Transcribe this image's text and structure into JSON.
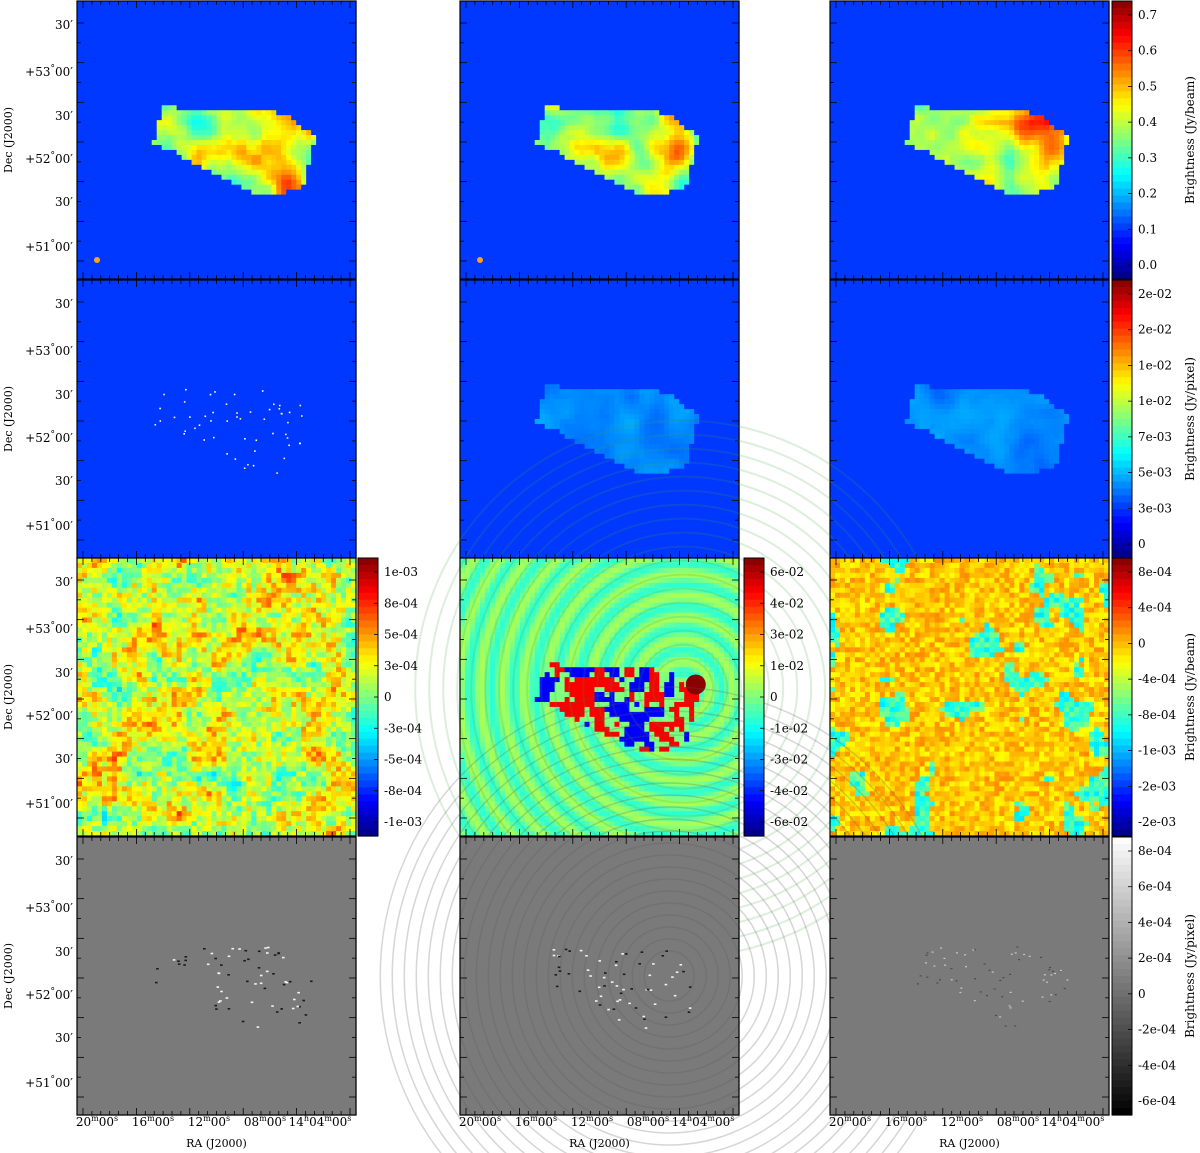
{
  "chart_data": {
    "type": "heatmap",
    "grid": {
      "rows": 4,
      "cols": 3
    },
    "x_axis": {
      "label": "RA (J2000)",
      "ticks": [
        {
          "h": "",
          "m": "20",
          "s": "00"
        },
        {
          "h": "",
          "m": "16",
          "s": "00"
        },
        {
          "h": "",
          "m": "12",
          "s": "00"
        },
        {
          "h": "",
          "m": "08",
          "s": "00"
        },
        {
          "h": "14",
          "m": "04",
          "s": "00"
        }
      ]
    },
    "y_axis": {
      "label": "Dec (J2000)",
      "ticks": [
        {
          "deg": "",
          "min": "30"
        },
        {
          "deg": "+53",
          "min": "00"
        },
        {
          "deg": "",
          "min": "30"
        },
        {
          "deg": "+52",
          "min": "00"
        },
        {
          "deg": "",
          "min": "30"
        },
        {
          "deg": "+51",
          "min": "00"
        }
      ]
    },
    "colorbars": [
      {
        "row": 0,
        "col": 2,
        "colormap": "jet",
        "label": "Brightness (Jy/beam)",
        "ticks": [
          "0.7",
          "0.6",
          "0.5",
          "0.4",
          "0.3",
          "0.2",
          "0.1",
          "0.0"
        ],
        "range": [
          -0.05,
          0.75
        ]
      },
      {
        "row": 1,
        "col": 2,
        "colormap": "jet",
        "label": "Brightness (Jy/pixel)",
        "ticks": [
          "2e-02",
          "2e-02",
          "1e-02",
          "1e-02",
          "7e-03",
          "5e-03",
          "3e-03",
          "0"
        ],
        "range": [
          0,
          0.022
        ]
      },
      {
        "row": 2,
        "col": 0,
        "colormap": "jet",
        "label": "",
        "ticks": [
          "1e-03",
          "8e-04",
          "5e-04",
          "3e-04",
          "0",
          "-3e-04",
          "-5e-04",
          "-8e-04",
          "-1e-03"
        ],
        "range": [
          -0.0011,
          0.0011
        ]
      },
      {
        "row": 2,
        "col": 1,
        "colormap": "jet",
        "label": "",
        "ticks": [
          "6e-02",
          "4e-02",
          "3e-02",
          "1e-02",
          "0",
          "-1e-02",
          "-3e-02",
          "-4e-02",
          "-6e-02"
        ],
        "range": [
          -0.06,
          0.06
        ]
      },
      {
        "row": 2,
        "col": 2,
        "colormap": "jet",
        "label": "Brightness (Jy/beam)",
        "ticks": [
          "8e-04",
          "4e-04",
          "0",
          "-4e-04",
          "-8e-04",
          "-1e-03",
          "-2e-03",
          "-2e-03"
        ],
        "range": [
          -0.002,
          0.0009
        ]
      },
      {
        "row": 3,
        "col": 2,
        "colormap": "gray",
        "label": "Brightness (Jy/pixel)",
        "ticks": [
          "8e-04",
          "6e-04",
          "4e-04",
          "2e-04",
          "0",
          "-2e-04",
          "-4e-04",
          "-6e-04"
        ],
        "range": [
          -0.0006,
          0.0008
        ]
      }
    ],
    "panels": [
      {
        "row": 0,
        "col": 0,
        "style": "source",
        "peak": 0.55,
        "beam_marker": true
      },
      {
        "row": 0,
        "col": 1,
        "style": "source",
        "peak": 0.9,
        "beam_marker": true
      },
      {
        "row": 0,
        "col": 2,
        "style": "source",
        "peak": 0.7,
        "beam_marker": false
      },
      {
        "row": 1,
        "col": 0,
        "style": "points"
      },
      {
        "row": 1,
        "col": 1,
        "style": "model_faint"
      },
      {
        "row": 1,
        "col": 2,
        "style": "model_faint"
      },
      {
        "row": 2,
        "col": 0,
        "style": "residual_noise"
      },
      {
        "row": 2,
        "col": 1,
        "style": "residual_ripple"
      },
      {
        "row": 2,
        "col": 2,
        "style": "residual_noise_warm"
      },
      {
        "row": 3,
        "col": 0,
        "style": "gray_edges",
        "ripple": false
      },
      {
        "row": 3,
        "col": 1,
        "style": "gray_edges",
        "ripple": true
      },
      {
        "row": 3,
        "col": 2,
        "style": "gray_edges_faint",
        "ripple": false
      }
    ]
  }
}
